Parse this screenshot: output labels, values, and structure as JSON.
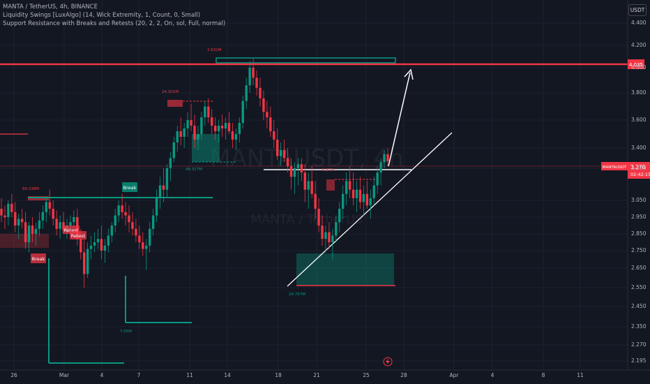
{
  "legend": {
    "symbol_line": "MANTA / TetherUS, 4h, BINANCE",
    "indicator1": "Liquidity Swings [LuxAlgo] (14, Wick Extremity, 1, Count, 0, Small)",
    "indicator2": "Support Resistance with Breaks and Retests (20, 2, 2, On, sol, Full, normal)"
  },
  "currency": "USDT",
  "watermark": {
    "ticker": "MANTAUSDT, 4h",
    "name": "MANTA / TetherUS"
  },
  "price_axis": [
    "4.400",
    "4.200",
    "4.000",
    "3.800",
    "3.600",
    "3.400",
    "3.200",
    "3.050",
    "2.950",
    "2.850",
    "2.750",
    "2.650",
    "2.550",
    "2.450",
    "2.350",
    "2.270",
    "2.195"
  ],
  "time_axis": [
    "26",
    "Mar",
    "4",
    "7",
    "11",
    "14",
    "18",
    "21",
    "25",
    "28",
    "Apr",
    "4",
    "8",
    "11"
  ],
  "resistance_label": "4.035",
  "current": {
    "symbol": "MANTAUSDT",
    "price": "3.270",
    "countdown": "02:42:15"
  },
  "annotations": {
    "vol1": "68.238M",
    "vol2": "24.301M",
    "vol3": "2.631M",
    "vol4": "49.317M",
    "vol5": "6.87M",
    "vol6": "7.05M",
    "vol7": "24.757M",
    "break1": "Break",
    "break2": "Break",
    "retest1": "Retest",
    "retest2": "Retest"
  },
  "chart_data": {
    "type": "candlestick",
    "ohlc": [
      [
        3.0,
        3.06,
        2.92,
        2.96
      ],
      [
        2.96,
        3.02,
        2.88,
        2.95
      ],
      [
        2.95,
        3.05,
        2.9,
        3.03
      ],
      [
        3.03,
        3.08,
        2.95,
        2.98
      ],
      [
        2.98,
        3.04,
        2.86,
        2.9
      ],
      [
        2.9,
        2.97,
        2.82,
        2.94
      ],
      [
        2.94,
        3.0,
        2.88,
        2.92
      ],
      [
        2.92,
        2.98,
        2.76,
        2.8
      ],
      [
        2.8,
        2.92,
        2.74,
        2.9
      ],
      [
        2.9,
        2.95,
        2.8,
        2.85
      ],
      [
        2.85,
        2.92,
        2.78,
        2.88
      ],
      [
        2.88,
        2.98,
        2.84,
        2.93
      ],
      [
        2.93,
        3.02,
        2.88,
        2.98
      ],
      [
        2.98,
        3.06,
        2.92,
        3.04
      ],
      [
        3.04,
        3.1,
        2.96,
        3.0
      ],
      [
        3.0,
        3.05,
        2.9,
        2.94
      ],
      [
        2.94,
        2.99,
        2.84,
        2.88
      ],
      [
        2.88,
        2.96,
        2.82,
        2.92
      ],
      [
        2.92,
        2.98,
        2.85,
        2.87
      ],
      [
        2.87,
        2.94,
        2.82,
        2.9
      ],
      [
        2.9,
        2.96,
        2.84,
        2.92
      ],
      [
        2.92,
        2.99,
        2.86,
        2.95
      ],
      [
        2.95,
        3.0,
        2.78,
        2.82
      ],
      [
        2.82,
        2.88,
        2.7,
        2.74
      ],
      [
        2.74,
        2.82,
        2.55,
        2.62
      ],
      [
        2.62,
        2.8,
        2.6,
        2.76
      ],
      [
        2.76,
        2.84,
        2.7,
        2.78
      ],
      [
        2.78,
        2.86,
        2.74,
        2.8
      ],
      [
        2.8,
        2.88,
        2.76,
        2.82
      ],
      [
        2.82,
        2.9,
        2.7,
        2.75
      ],
      [
        2.75,
        2.82,
        2.68,
        2.78
      ],
      [
        2.78,
        2.88,
        2.74,
        2.84
      ],
      [
        2.84,
        2.92,
        2.8,
        2.9
      ],
      [
        2.9,
        3.0,
        2.86,
        2.96
      ],
      [
        2.96,
        3.05,
        2.92,
        3.02
      ],
      [
        3.02,
        3.08,
        2.94,
        2.98
      ],
      [
        2.98,
        3.04,
        2.9,
        2.96
      ],
      [
        2.96,
        3.02,
        2.86,
        2.92
      ],
      [
        2.92,
        2.98,
        2.84,
        2.88
      ],
      [
        2.88,
        2.94,
        2.8,
        2.84
      ],
      [
        2.84,
        2.9,
        2.76,
        2.8
      ],
      [
        2.8,
        2.86,
        2.72,
        2.76
      ],
      [
        2.76,
        2.82,
        2.64,
        2.78
      ],
      [
        2.78,
        2.92,
        2.74,
        2.88
      ],
      [
        2.88,
        3.0,
        2.84,
        2.96
      ],
      [
        2.96,
        3.1,
        2.92,
        3.06
      ],
      [
        3.06,
        3.16,
        3.0,
        3.12
      ],
      [
        3.12,
        3.2,
        3.04,
        3.1
      ],
      [
        3.1,
        3.24,
        3.06,
        3.2
      ],
      [
        3.2,
        3.36,
        3.14,
        3.3
      ],
      [
        3.3,
        3.48,
        3.26,
        3.44
      ],
      [
        3.44,
        3.56,
        3.36,
        3.52
      ],
      [
        3.52,
        3.62,
        3.42,
        3.48
      ],
      [
        3.48,
        3.58,
        3.4,
        3.54
      ],
      [
        3.54,
        3.66,
        3.48,
        3.6
      ],
      [
        3.6,
        3.72,
        3.52,
        3.56
      ],
      [
        3.56,
        3.64,
        3.4,
        3.46
      ],
      [
        3.46,
        3.56,
        3.38,
        3.5
      ],
      [
        3.5,
        3.66,
        3.46,
        3.62
      ],
      [
        3.62,
        3.74,
        3.56,
        3.7
      ],
      [
        3.7,
        3.76,
        3.58,
        3.62
      ],
      [
        3.62,
        3.68,
        3.5,
        3.56
      ],
      [
        3.56,
        3.62,
        3.46,
        3.52
      ],
      [
        3.52,
        3.6,
        3.44,
        3.56
      ],
      [
        3.56,
        3.64,
        3.48,
        3.54
      ],
      [
        3.54,
        3.62,
        3.46,
        3.58
      ],
      [
        3.58,
        3.66,
        3.5,
        3.52
      ],
      [
        3.52,
        3.58,
        3.4,
        3.46
      ],
      [
        3.46,
        3.54,
        3.38,
        3.5
      ],
      [
        3.5,
        3.62,
        3.44,
        3.58
      ],
      [
        3.58,
        3.78,
        3.54,
        3.74
      ],
      [
        3.74,
        3.92,
        3.68,
        3.86
      ],
      [
        3.86,
        4.06,
        3.8,
        4.0
      ],
      [
        4.0,
        4.08,
        3.86,
        3.92
      ],
      [
        3.92,
        3.98,
        3.78,
        3.84
      ],
      [
        3.84,
        3.92,
        3.7,
        3.76
      ],
      [
        3.76,
        3.82,
        3.6,
        3.66
      ],
      [
        3.66,
        3.74,
        3.54,
        3.62
      ],
      [
        3.62,
        3.7,
        3.48,
        3.52
      ],
      [
        3.52,
        3.6,
        3.4,
        3.46
      ],
      [
        3.46,
        3.54,
        3.28,
        3.32
      ],
      [
        3.32,
        3.44,
        3.22,
        3.38
      ],
      [
        3.38,
        3.46,
        3.26,
        3.3
      ],
      [
        3.3,
        3.4,
        3.18,
        3.22
      ],
      [
        3.22,
        3.3,
        3.1,
        3.16
      ],
      [
        3.16,
        3.26,
        3.08,
        3.2
      ],
      [
        3.2,
        3.3,
        3.12,
        3.24
      ],
      [
        3.24,
        3.3,
        3.14,
        3.18
      ],
      [
        3.18,
        3.24,
        3.04,
        3.1
      ],
      [
        3.1,
        3.18,
        3.0,
        3.14
      ],
      [
        3.14,
        3.22,
        3.06,
        3.08
      ],
      [
        3.08,
        3.14,
        2.94,
        3.0
      ],
      [
        3.0,
        3.06,
        2.86,
        2.9
      ],
      [
        2.9,
        2.96,
        2.78,
        2.82
      ],
      [
        2.82,
        2.9,
        2.74,
        2.86
      ],
      [
        2.86,
        2.92,
        2.76,
        2.8
      ],
      [
        2.8,
        2.88,
        2.7,
        2.84
      ],
      [
        2.84,
        2.96,
        2.8,
        2.92
      ],
      [
        2.92,
        3.04,
        2.86,
        3.0
      ],
      [
        3.0,
        3.12,
        2.94,
        3.08
      ],
      [
        3.08,
        3.18,
        3.02,
        3.14
      ],
      [
        3.14,
        3.22,
        3.06,
        3.1
      ],
      [
        3.1,
        3.18,
        3.02,
        3.06
      ],
      [
        3.06,
        3.14,
        2.98,
        3.1
      ],
      [
        3.1,
        3.16,
        3.0,
        3.04
      ],
      [
        3.04,
        3.12,
        2.96,
        3.08
      ],
      [
        3.08,
        3.14,
        3.0,
        3.02
      ],
      [
        3.02,
        3.1,
        2.94,
        3.06
      ],
      [
        3.06,
        3.16,
        3.02,
        3.12
      ],
      [
        3.12,
        3.22,
        3.08,
        3.18
      ],
      [
        3.18,
        3.3,
        3.12,
        3.26
      ],
      [
        3.26,
        3.38,
        3.2,
        3.34
      ],
      [
        3.34,
        3.4,
        3.22,
        3.27
      ]
    ]
  }
}
